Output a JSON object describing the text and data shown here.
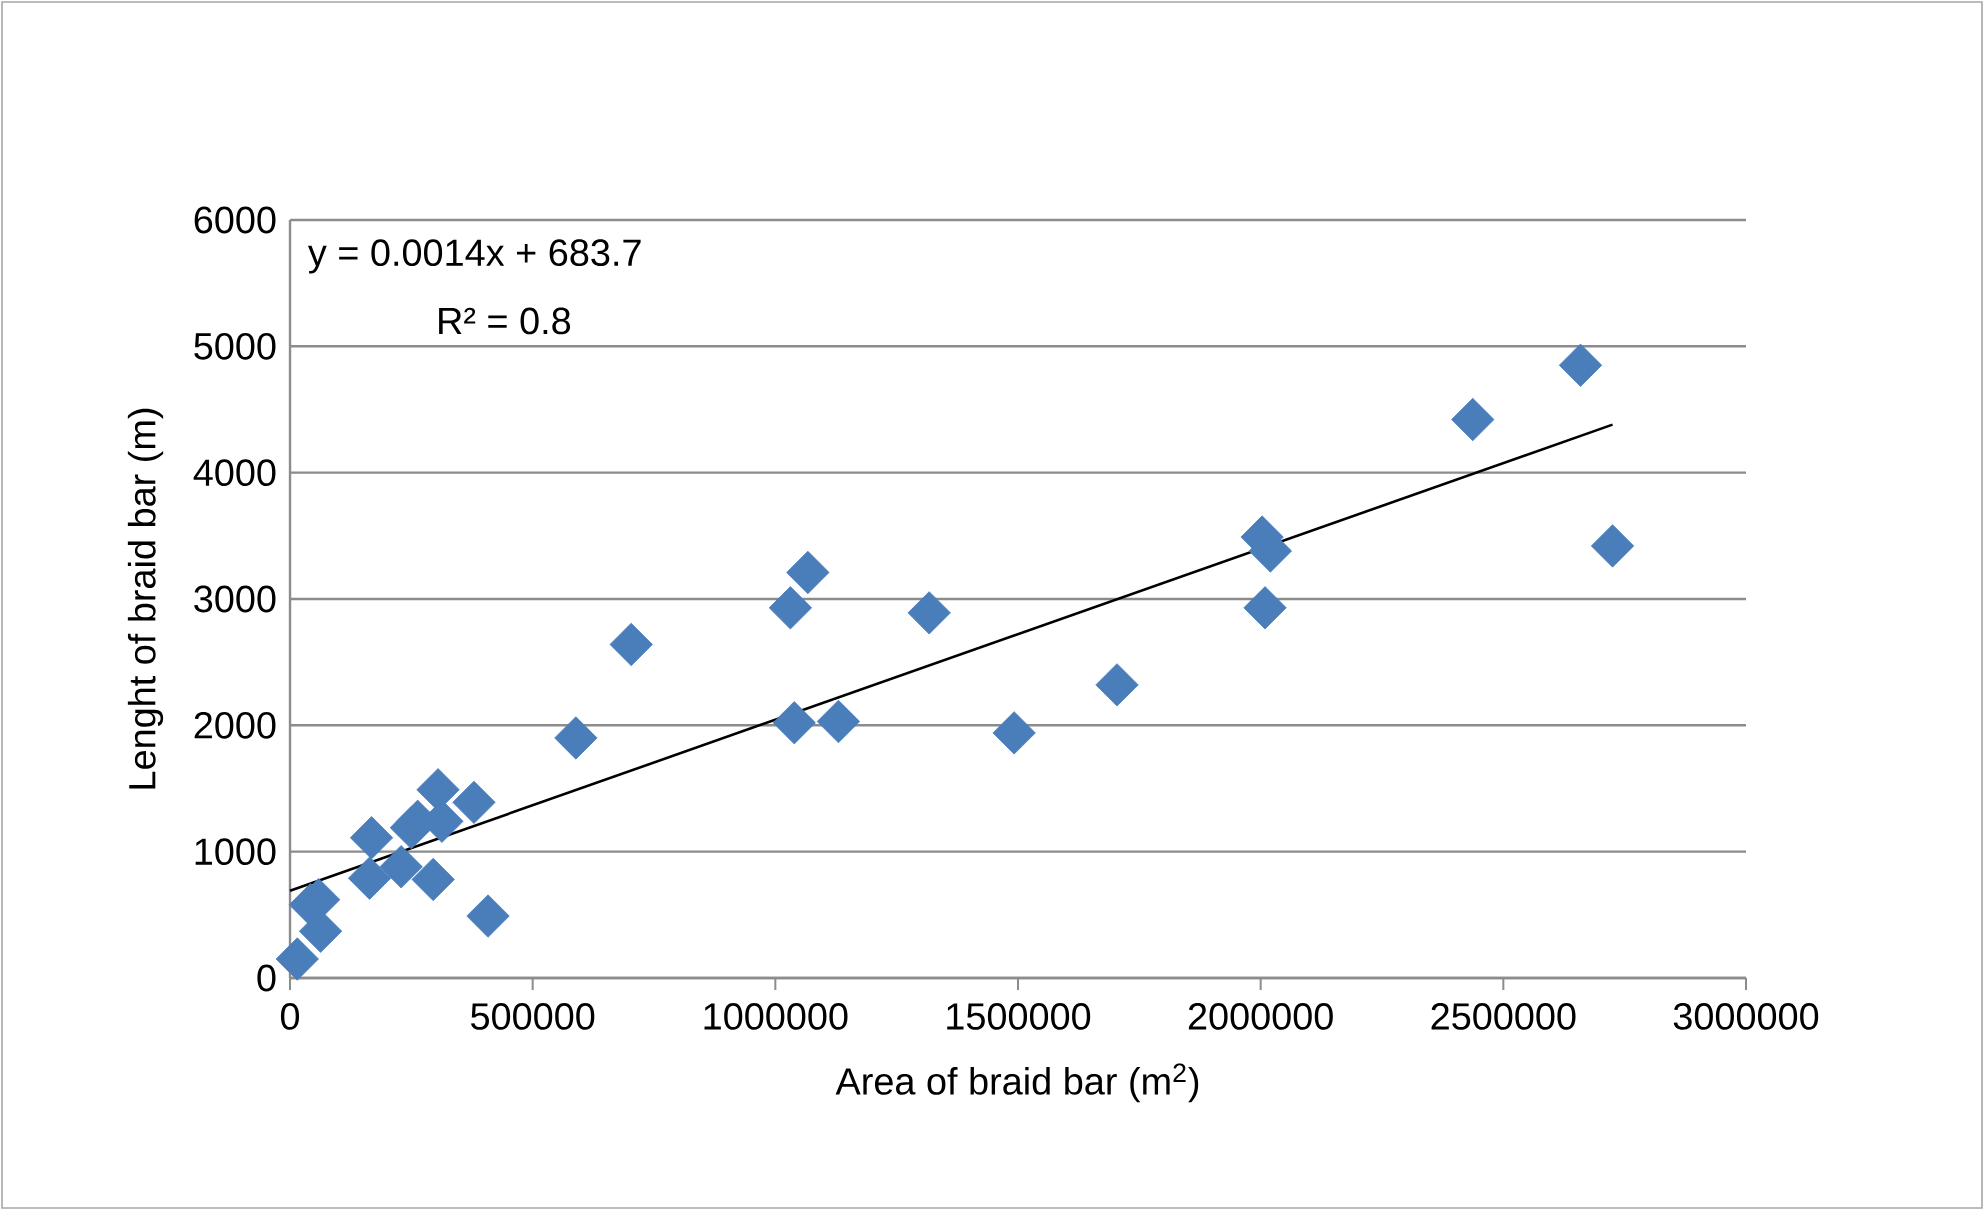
{
  "chart_data": {
    "type": "scatter",
    "xlabel": "Area of braid bar (m$^{2}$)",
    "ylabel": "Lenght of braid bar (m)",
    "xlim": [
      0,
      3000000
    ],
    "xticks": [
      0,
      500000,
      1000000,
      1500000,
      2000000,
      2500000,
      3000000
    ],
    "ylim": [
      0,
      6000
    ],
    "yticks": [
      0,
      1000,
      2000,
      3000,
      4000,
      5000,
      6000
    ],
    "grid": "y",
    "marker": "diamond",
    "annotations": [
      "y = 0.0014x + 683.7",
      "R² = 0.8"
    ],
    "series": [
      {
        "color": "#4a7ebb",
        "x": [
          15000,
          42000,
          59000,
          63000,
          168000,
          164000,
          229000,
          250000,
          263000,
          305000,
          313000,
          295000,
          379000,
          408000,
          589000,
          703000,
          1031000,
          1067000,
          1039000,
          1130000,
          1317000,
          1492000,
          1704000,
          2003000,
          2020000,
          2009000,
          2437000,
          2659000,
          2725000
        ],
        "values": [
          150,
          580,
          620,
          370,
          1110,
          790,
          880,
          1190,
          1240,
          1490,
          1240,
          780,
          1390,
          490,
          1900,
          2640,
          2930,
          3210,
          2020,
          2030,
          2890,
          1940,
          2320,
          3490,
          3380,
          2930,
          4420,
          4850,
          3420
        ]
      },
      {
        "type": "line",
        "color": "#000000",
        "marker": "none",
        "x": [
          0,
          2725000
        ],
        "values": [
          690,
          4380
        ]
      }
    ]
  }
}
